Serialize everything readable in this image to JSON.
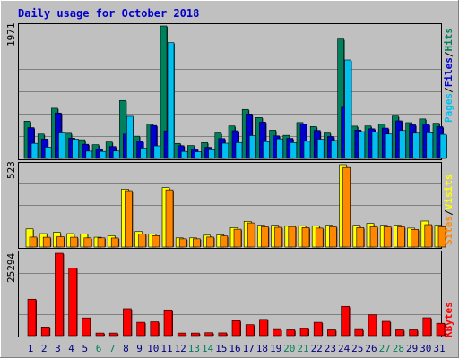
{
  "title": "Daily usage for October 2018",
  "colors": {
    "background": "#c0c0c0",
    "title_text": "#0000cc",
    "hits": "#00805c",
    "files": "#0000d0",
    "pages": "#00c0f0",
    "visits": "#ffff00",
    "sites": "#ff8800",
    "kbytes": "#ff0000",
    "weekend_label": "#00805c",
    "weekday_label": "#000080"
  },
  "legend": {
    "pages": "Pages",
    "files": "Files",
    "hits": "Hits",
    "sites": "Sites",
    "visits": "Visits",
    "kbytes": "KBytes",
    "separator": "/"
  },
  "chart_data": [
    {
      "type": "bar",
      "panel": "hits-files-pages",
      "ylim": [
        0,
        1971
      ],
      "max_label": "1971",
      "categories": [
        "1",
        "2",
        "3",
        "4",
        "5",
        "6",
        "7",
        "8",
        "9",
        "10",
        "11",
        "12",
        "13",
        "14",
        "15",
        "16",
        "17",
        "18",
        "19",
        "20",
        "21",
        "22",
        "23",
        "24",
        "25",
        "26",
        "27",
        "28",
        "29",
        "30",
        "31"
      ],
      "weekend_days": [
        "6",
        "7",
        "13",
        "14",
        "20",
        "21",
        "27",
        "28"
      ],
      "series": [
        {
          "name": "Hits",
          "values": [
            555,
            363,
            747,
            375,
            278,
            205,
            245,
            862,
            331,
            509,
            1971,
            223,
            192,
            236,
            379,
            484,
            729,
            608,
            421,
            344,
            535,
            475,
            379,
            1776,
            481,
            484,
            509,
            630,
            533,
            588,
            524
          ]
        },
        {
          "name": "Files",
          "values": [
            459,
            288,
            676,
            302,
            211,
            143,
            177,
            363,
            255,
            491,
            411,
            190,
            140,
            166,
            296,
            413,
            662,
            542,
            336,
            299,
            512,
            418,
            327,
            774,
            422,
            442,
            452,
            560,
            500,
            509,
            473
          ]
        },
        {
          "name": "Pages",
          "values": [
            224,
            167,
            379,
            287,
            108,
            104,
            110,
            627,
            154,
            186,
            1722,
            104,
            100,
            129,
            226,
            236,
            340,
            250,
            291,
            235,
            255,
            286,
            268,
            1465,
            398,
            392,
            363,
            416,
            376,
            382,
            358
          ]
        }
      ]
    },
    {
      "type": "bar",
      "panel": "visits-sites",
      "ylim": [
        0,
        523
      ],
      "max_label": "523",
      "categories": [
        "1",
        "2",
        "3",
        "4",
        "5",
        "6",
        "7",
        "8",
        "9",
        "10",
        "11",
        "12",
        "13",
        "14",
        "15",
        "16",
        "17",
        "18",
        "19",
        "20",
        "21",
        "22",
        "23",
        "24",
        "25",
        "26",
        "27",
        "28",
        "29",
        "30",
        "31"
      ],
      "series": [
        {
          "name": "Visits",
          "values": [
            115,
            85,
            93,
            85,
            83,
            62,
            72,
            367,
            98,
            83,
            377,
            58,
            58,
            75,
            77,
            123,
            163,
            138,
            138,
            132,
            135,
            135,
            138,
            523,
            138,
            150,
            138,
            138,
            120,
            165,
            138
          ]
        },
        {
          "name": "Sites",
          "values": [
            63,
            62,
            65,
            62,
            58,
            58,
            57,
            358,
            83,
            72,
            363,
            52,
            52,
            63,
            70,
            113,
            153,
            128,
            125,
            130,
            123,
            120,
            128,
            505,
            123,
            128,
            128,
            128,
            112,
            142,
            128
          ]
        }
      ]
    },
    {
      "type": "bar",
      "panel": "kbytes",
      "ylim": [
        0,
        25294
      ],
      "max_label": "25294",
      "categories": [
        "1",
        "2",
        "3",
        "4",
        "5",
        "6",
        "7",
        "8",
        "9",
        "10",
        "11",
        "12",
        "13",
        "14",
        "15",
        "16",
        "17",
        "18",
        "19",
        "20",
        "21",
        "22",
        "23",
        "24",
        "25",
        "26",
        "27",
        "28",
        "29",
        "30",
        "31"
      ],
      "series": [
        {
          "name": "KBytes",
          "values": [
            11200,
            2660,
            25294,
            20800,
            5450,
            800,
            800,
            8260,
            4100,
            4250,
            7900,
            800,
            800,
            900,
            850,
            4600,
            3400,
            5000,
            1900,
            1800,
            2200,
            4100,
            1800,
            9000,
            1900,
            6400,
            4400,
            1800,
            1800,
            5500,
            3800
          ]
        }
      ]
    }
  ]
}
